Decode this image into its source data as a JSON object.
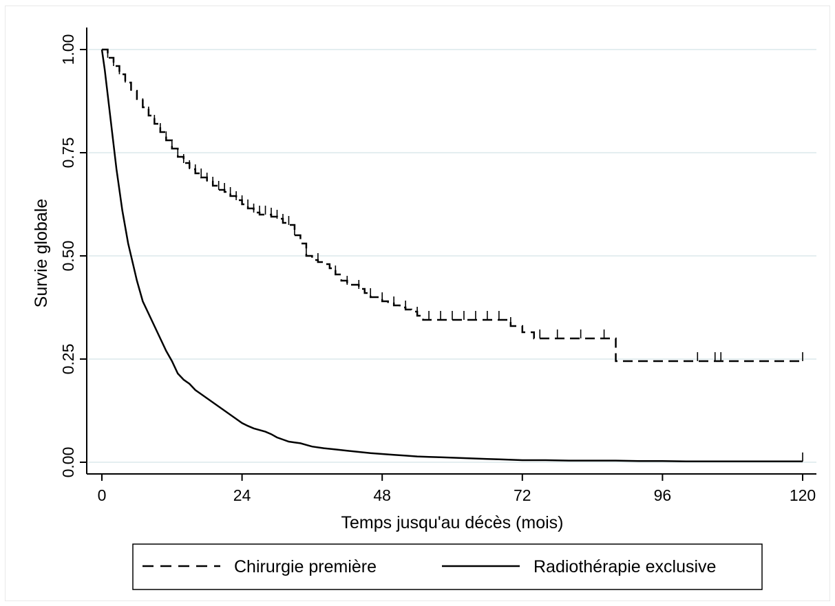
{
  "chart_data": {
    "type": "line",
    "xlabel": "Temps jusqu'au décès (mois)",
    "ylabel": "Survie globale",
    "xlim": [
      0,
      120
    ],
    "ylim": [
      0,
      1
    ],
    "x_ticks": [
      "0",
      "24",
      "48",
      "72",
      "96",
      "120"
    ],
    "x_tick_values": [
      0,
      24,
      48,
      72,
      96,
      120
    ],
    "y_ticks": [
      "0.00",
      "0.25",
      "0.50",
      "0.75",
      "1.00"
    ],
    "y_tick_values": [
      0,
      0.25,
      0.5,
      0.75,
      1
    ],
    "grid": true,
    "legend_position": "bottom",
    "series": [
      {
        "name": "Chirurgie première",
        "style": "dashed",
        "color": "#000000",
        "step": true,
        "x": [
          0,
          1,
          2,
          3,
          4,
          5,
          6,
          7,
          8,
          9,
          10,
          11,
          12,
          13,
          14,
          15,
          16,
          17,
          18,
          19,
          20,
          21,
          22,
          23,
          24,
          25,
          26,
          27,
          28,
          29,
          30,
          31,
          32,
          33,
          34,
          35,
          36,
          37,
          38,
          39,
          40,
          41,
          42,
          43,
          44,
          45,
          46,
          47,
          48,
          49,
          50,
          51,
          52,
          53,
          54,
          55,
          56,
          57,
          58,
          59,
          60,
          62,
          64,
          66,
          68,
          70,
          72,
          74,
          76,
          78,
          80,
          82,
          84,
          86,
          88,
          89,
          120
        ],
        "y": [
          1.0,
          0.98,
          0.96,
          0.94,
          0.92,
          0.9,
          0.88,
          0.86,
          0.84,
          0.82,
          0.8,
          0.78,
          0.76,
          0.74,
          0.725,
          0.71,
          0.7,
          0.69,
          0.68,
          0.67,
          0.66,
          0.655,
          0.645,
          0.635,
          0.625,
          0.615,
          0.605,
          0.6,
          0.6,
          0.595,
          0.59,
          0.58,
          0.575,
          0.55,
          0.53,
          0.5,
          0.49,
          0.485,
          0.48,
          0.47,
          0.455,
          0.44,
          0.43,
          0.43,
          0.42,
          0.41,
          0.4,
          0.4,
          0.39,
          0.385,
          0.38,
          0.375,
          0.37,
          0.365,
          0.355,
          0.345,
          0.345,
          0.345,
          0.345,
          0.345,
          0.345,
          0.345,
          0.345,
          0.345,
          0.345,
          0.33,
          0.315,
          0.3,
          0.3,
          0.3,
          0.3,
          0.3,
          0.3,
          0.3,
          0.245,
          0.245,
          0.245
        ],
        "censored_x": [
          1,
          2,
          3,
          4,
          5,
          6,
          7,
          8,
          9,
          10,
          11,
          12,
          13,
          14,
          15,
          16,
          17,
          18,
          19,
          20,
          21,
          22,
          23,
          24,
          25,
          26,
          27,
          28,
          29,
          30,
          31,
          32,
          33,
          35,
          37,
          40,
          42,
          44,
          46,
          48,
          50,
          52,
          54,
          56,
          58,
          60,
          62,
          64,
          66,
          68,
          70,
          75,
          78,
          82,
          86,
          102,
          105,
          106,
          120
        ]
      },
      {
        "name": "Radiothérapie exclusive",
        "style": "solid",
        "color": "#000000",
        "step": false,
        "x": [
          0,
          0.5,
          1,
          1.5,
          2,
          2.5,
          3,
          3.5,
          4,
          4.5,
          5,
          5.5,
          6,
          6.5,
          7,
          8,
          9,
          10,
          11,
          12,
          13,
          14,
          15,
          16,
          17,
          18,
          19,
          20,
          21,
          22,
          23,
          24,
          25,
          26,
          27,
          28,
          29,
          30,
          31,
          32,
          33,
          34,
          35,
          36,
          38,
          40,
          42,
          44,
          46,
          48,
          50,
          52,
          54,
          56,
          58,
          60,
          62,
          64,
          66,
          68,
          70,
          72,
          76,
          80,
          84,
          88,
          92,
          96,
          100,
          104,
          108,
          112,
          116,
          120
        ],
        "y": [
          1.0,
          0.95,
          0.89,
          0.83,
          0.77,
          0.71,
          0.66,
          0.61,
          0.57,
          0.53,
          0.5,
          0.47,
          0.44,
          0.415,
          0.39,
          0.36,
          0.33,
          0.3,
          0.27,
          0.245,
          0.215,
          0.2,
          0.19,
          0.175,
          0.165,
          0.155,
          0.145,
          0.135,
          0.125,
          0.115,
          0.105,
          0.095,
          0.088,
          0.082,
          0.078,
          0.074,
          0.068,
          0.06,
          0.055,
          0.05,
          0.048,
          0.046,
          0.042,
          0.038,
          0.034,
          0.031,
          0.028,
          0.025,
          0.022,
          0.02,
          0.018,
          0.016,
          0.014,
          0.013,
          0.012,
          0.011,
          0.01,
          0.009,
          0.008,
          0.007,
          0.006,
          0.005,
          0.005,
          0.004,
          0.004,
          0.004,
          0.003,
          0.003,
          0.002,
          0.002,
          0.002,
          0.002,
          0.002,
          0.002
        ],
        "censored_x": [
          120
        ]
      }
    ]
  }
}
